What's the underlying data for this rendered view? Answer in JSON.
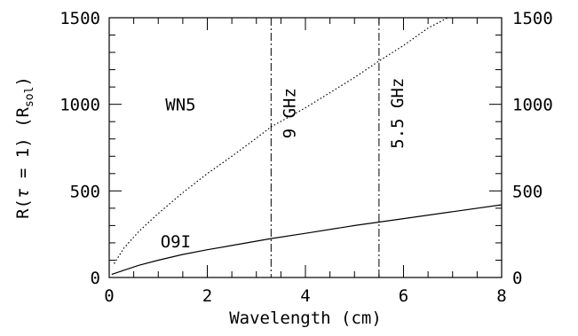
{
  "chart_data": {
    "type": "line",
    "title": "",
    "xlabel": "Wavelength (cm)",
    "ylabel": {
      "prefix": "R(",
      "tau": "τ",
      "mid": " = 1) (R",
      "sub": "sol",
      "suffix": ")"
    },
    "xlim": [
      0,
      8
    ],
    "ylim": [
      0,
      1500
    ],
    "x_ticks": [
      0,
      2,
      4,
      6,
      8
    ],
    "y_ticks": [
      0,
      500,
      1000,
      1500
    ],
    "right_y_ticks": [
      0,
      500,
      1000,
      1500
    ],
    "grid": false,
    "series": [
      {
        "name": "WN5",
        "style": "dotted",
        "x": [
          0.1,
          0.3,
          0.6,
          1.0,
          1.5,
          2.0,
          2.5,
          3.0,
          3.3,
          4.0,
          5.0,
          5.5,
          6.0,
          6.5,
          6.9
        ],
        "y": [
          80,
          170,
          265,
          370,
          490,
          600,
          700,
          805,
          870,
          980,
          1155,
          1250,
          1340,
          1440,
          1500
        ]
      },
      {
        "name": "O9I",
        "style": "solid",
        "x": [
          0.05,
          0.3,
          0.6,
          1.0,
          1.5,
          2.0,
          2.5,
          3.0,
          3.3,
          4.0,
          5.0,
          5.5,
          6.0,
          7.0,
          8.0
        ],
        "y": [
          18,
          42,
          70,
          100,
          133,
          160,
          185,
          210,
          225,
          255,
          300,
          320,
          340,
          380,
          420
        ]
      }
    ],
    "vlines": [
      {
        "x": 3.3,
        "label": "9 GHz"
      },
      {
        "x": 5.5,
        "label": "5.5 GHz"
      }
    ],
    "annotations": [
      {
        "text": "WN5",
        "x": 1.0,
        "y": 1000
      },
      {
        "text": "O9I",
        "x": 0.9,
        "y": 210
      }
    ],
    "colors": {
      "line": "#000000",
      "background": "#ffffff"
    }
  }
}
